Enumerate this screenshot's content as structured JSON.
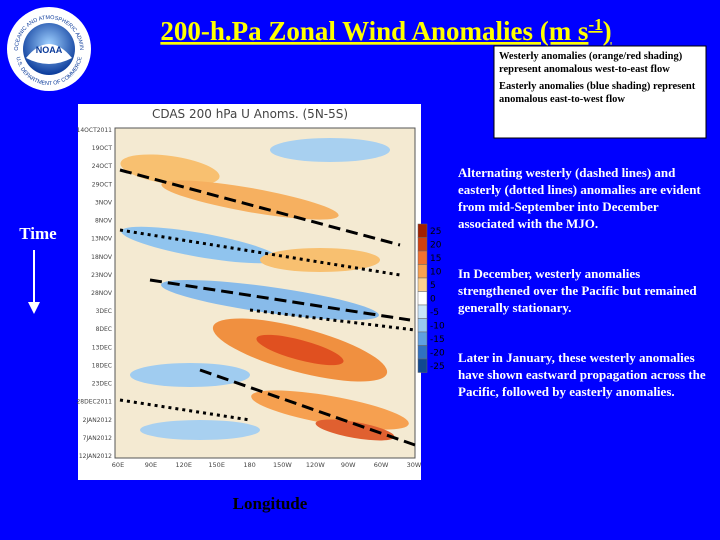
{
  "logo": {
    "name": "NOAA",
    "ring_top": "NATIONAL OCEANIC AND ATMOSPHERIC ADMINISTRATION",
    "ring_bottom": "U.S. DEPARTMENT OF COMMERCE"
  },
  "header": {
    "title": "200-h.Pa Zonal Wind Anomalies (m s",
    "title_superscript": "-1",
    "title_end": ")"
  },
  "legend_box": [
    "Westerly anomalies (orange/red shading) represent anomalous west-to-east flow",
    "Easterly anomalies (blue shading) represent anomalous east-to-west flow"
  ],
  "notes": [
    "Alternating westerly (dashed lines) and easterly (dotted lines) anomalies are evident from mid-September into December associated with the MJO.",
    "In December, westerly anomalies strengthened over the Pacific but remained generally stationary.",
    "Later in January, these westerly anomalies have shown eastward propagation across the Pacific, followed by easterly anomalies."
  ],
  "axis_labels": {
    "y": "Time",
    "x": "Longitude"
  },
  "plot": {
    "title": "CDAS 200 hPa U Anoms. (5N-5S)",
    "y_labels": [
      "14OCT2011",
      "19OCT",
      "24OCT",
      "29OCT",
      "3NOV",
      "8NOV",
      "13NOV",
      "18NOV",
      "23NOV",
      "28NOV",
      "3DEC",
      "8DEC",
      "13DEC",
      "18DEC",
      "23DEC",
      "28DEC2011",
      "2JAN2012",
      "7JAN2012",
      "12JAN2012"
    ],
    "x_labels": [
      "60E",
      "90E",
      "120E",
      "150E",
      "180",
      "150W",
      "120W",
      "90W",
      "60W",
      "30W"
    ],
    "colorbar_labels": [
      "25",
      "20",
      "15",
      "10",
      "5",
      "0",
      "-5",
      "-10",
      "-15",
      "-20",
      "-25"
    ]
  }
}
